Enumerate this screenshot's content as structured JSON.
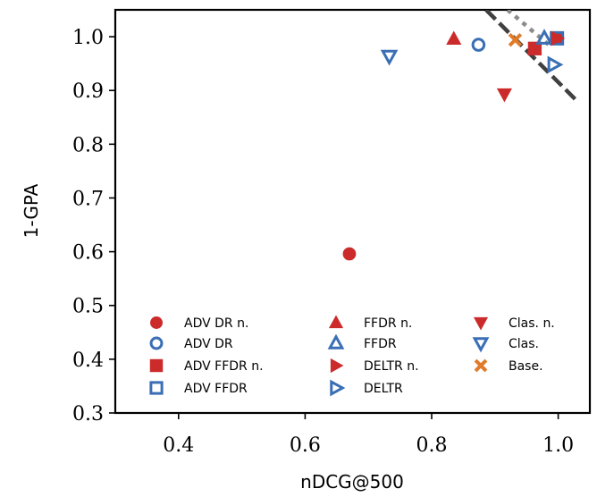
{
  "chart_data": {
    "type": "scatter",
    "xlabel": "nDCG@500",
    "ylabel": "1-GPA",
    "xlim": [
      0.3,
      1.05
    ],
    "ylim": [
      0.3,
      1.05
    ],
    "xticks": [
      "0.4",
      "0.6",
      "0.8",
      "1.0"
    ],
    "yticks": [
      "0.3",
      "0.4",
      "0.5",
      "0.6",
      "0.7",
      "0.8",
      "0.9",
      "1.0"
    ],
    "grid": false,
    "legend_position": "bottom",
    "colors": {
      "red": "#cc2b2b",
      "blue": "#3a6fb5",
      "orange": "#e07b2a",
      "dark_line": "#404040",
      "gray_line": "#8c8c8c"
    },
    "series": [
      {
        "name": "ADV DR n.",
        "marker": "circle",
        "filled": true,
        "color": "#cc2b2b",
        "points": [
          [
            0.67,
            0.596
          ]
        ]
      },
      {
        "name": "ADV DR",
        "marker": "circle",
        "filled": false,
        "color": "#3a6fb5",
        "points": [
          [
            0.874,
            0.985
          ]
        ]
      },
      {
        "name": "ADV FFDR n.",
        "marker": "square",
        "filled": true,
        "color": "#cc2b2b",
        "points": [
          [
            0.963,
            0.978
          ],
          [
            0.998,
            0.997
          ]
        ]
      },
      {
        "name": "ADV FFDR",
        "marker": "square",
        "filled": false,
        "color": "#3a6fb5",
        "points": [
          [
            0.998,
            0.997
          ]
        ]
      },
      {
        "name": "FFDR n.",
        "marker": "triangle-up",
        "filled": true,
        "color": "#cc2b2b",
        "points": [
          [
            0.835,
            0.996
          ]
        ]
      },
      {
        "name": "FFDR",
        "marker": "triangle-up",
        "filled": false,
        "color": "#3a6fb5",
        "points": [
          [
            0.978,
            0.997
          ]
        ]
      },
      {
        "name": "DELTR n.",
        "marker": "triangle-right",
        "filled": true,
        "color": "#cc2b2b",
        "points": [
          [
            0.998,
            0.997
          ]
        ]
      },
      {
        "name": "DELTR",
        "marker": "triangle-right",
        "filled": false,
        "color": "#3a6fb5",
        "points": [
          [
            0.993,
            0.948
          ]
        ]
      },
      {
        "name": "Clas. n.",
        "marker": "triangle-down",
        "filled": true,
        "color": "#cc2b2b",
        "points": [
          [
            0.915,
            0.893
          ]
        ]
      },
      {
        "name": "Clas.",
        "marker": "triangle-down",
        "filled": false,
        "color": "#3a6fb5",
        "points": [
          [
            0.733,
            0.964
          ]
        ]
      },
      {
        "name": "Base.",
        "marker": "x",
        "filled": true,
        "color": "#e07b2a",
        "points": [
          [
            0.932,
            0.994
          ]
        ]
      }
    ],
    "lines": [
      {
        "style": "dashed",
        "color": "#404040",
        "from": [
          0.886,
          1.05
        ],
        "to": [
          1.03,
          0.88
        ]
      },
      {
        "style": "dotted",
        "color": "#8c8c8c",
        "from": [
          0.92,
          1.05
        ],
        "to": [
          0.985,
          0.985
        ]
      }
    ]
  }
}
